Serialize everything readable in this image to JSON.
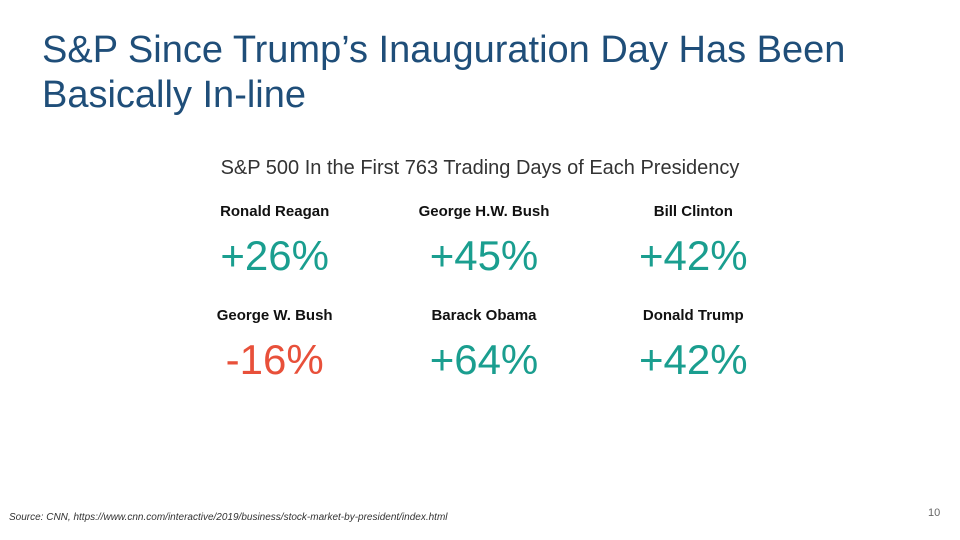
{
  "slide": {
    "title": "S&P Since Trump’s Inauguration Day Has Been Basically In-line",
    "subtitle": "S&P 500 In the First 763 Trading Days of Each Presidency",
    "source": "Source: CNN, https://www.cnn.com/interactive/2019/business/stock-market-by-president/index.html",
    "page_number": "10"
  },
  "colors": {
    "title": "#1f4e79",
    "positive": "#1a9e8f",
    "negative": "#e8503a"
  },
  "presidents": [
    {
      "name": "Ronald Reagan",
      "change": "+26%",
      "value": 26
    },
    {
      "name": "George H.W. Bush",
      "change": "+45%",
      "value": 45
    },
    {
      "name": "Bill Clinton",
      "change": "+42%",
      "value": 42
    },
    {
      "name": "George W. Bush",
      "change": "-16%",
      "value": -16
    },
    {
      "name": "Barack Obama",
      "change": "+64%",
      "value": 64
    },
    {
      "name": "Donald Trump",
      "change": "+42%",
      "value": 42
    }
  ]
}
